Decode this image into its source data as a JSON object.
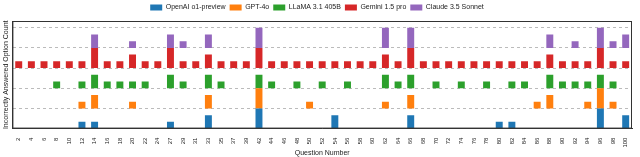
{
  "chart_data": {
    "type": "bar",
    "x_label": "Question Number",
    "y_label": "Incorrectly Answered Option Count",
    "categories": [
      2,
      4,
      6,
      8,
      10,
      12,
      14,
      16,
      18,
      20,
      22,
      24,
      27,
      29,
      31,
      33,
      35,
      37,
      39,
      42,
      44,
      46,
      48,
      50,
      52,
      54,
      56,
      58,
      60,
      62,
      64,
      66,
      68,
      70,
      72,
      74,
      76,
      78,
      80,
      82,
      84,
      86,
      88,
      90,
      92,
      94,
      96,
      98,
      100
    ],
    "series": [
      {
        "name": "OpenAI o1-preview",
        "color": "#1f77b4",
        "base": 0,
        "values": [
          0,
          0,
          0,
          0,
          0,
          1,
          1,
          0,
          0,
          0,
          0,
          0,
          1,
          0,
          0,
          2,
          0,
          0,
          0,
          3,
          0,
          0,
          0,
          0,
          0,
          2,
          0,
          0,
          0,
          0,
          0,
          2,
          0,
          0,
          0,
          0,
          0,
          0,
          1,
          1,
          0,
          0,
          0,
          0,
          0,
          0,
          3,
          0,
          2
        ]
      },
      {
        "name": "GPT-4o",
        "color": "#ff7f0e",
        "base": 3,
        "values": [
          0,
          0,
          0,
          0,
          0,
          1,
          2,
          0,
          0,
          1,
          0,
          0,
          0,
          0,
          0,
          2,
          0,
          0,
          0,
          3,
          0,
          0,
          0,
          1,
          0,
          0,
          0,
          0,
          0,
          1,
          0,
          2,
          0,
          0,
          0,
          0,
          0,
          0,
          0,
          0,
          0,
          1,
          2,
          0,
          0,
          1,
          3,
          1,
          0
        ]
      },
      {
        "name": "LLaMA 3.1 405B",
        "color": "#2ca02c",
        "base": 6,
        "values": [
          0,
          0,
          0,
          1,
          0,
          1,
          2,
          1,
          1,
          1,
          1,
          0,
          2,
          1,
          0,
          2,
          1,
          0,
          0,
          2,
          1,
          0,
          1,
          0,
          1,
          0,
          1,
          0,
          0,
          2,
          1,
          2,
          0,
          1,
          0,
          1,
          0,
          1,
          0,
          1,
          1,
          0,
          2,
          1,
          1,
          1,
          2,
          1,
          0
        ]
      },
      {
        "name": "Gemini 1.5 pro",
        "color": "#d62728",
        "base": 9,
        "values": [
          1,
          1,
          1,
          1,
          1,
          1,
          3,
          1,
          1,
          2,
          1,
          1,
          3,
          1,
          1,
          2,
          1,
          1,
          1,
          3,
          1,
          1,
          1,
          1,
          1,
          1,
          1,
          1,
          1,
          2,
          1,
          3,
          1,
          1,
          1,
          1,
          1,
          1,
          1,
          1,
          1,
          1,
          2,
          1,
          1,
          1,
          3,
          1,
          1
        ]
      },
      {
        "name": "Claude 3.5 Sonnet",
        "color": "#9467bd",
        "base": 12,
        "values": [
          0,
          0,
          0,
          0,
          0,
          0,
          2,
          0,
          0,
          1,
          0,
          0,
          2,
          1,
          0,
          2,
          0,
          0,
          0,
          3,
          0,
          0,
          0,
          0,
          0,
          0,
          0,
          0,
          0,
          3,
          0,
          3,
          0,
          0,
          0,
          0,
          0,
          0,
          0,
          0,
          0,
          0,
          2,
          0,
          1,
          0,
          3,
          1,
          2
        ]
      }
    ],
    "ylim": [
      0,
      16
    ],
    "yticks": [
      0,
      3,
      6,
      9,
      12,
      15
    ],
    "grid": true,
    "legend": "top",
    "tick_labels": "x"
  }
}
